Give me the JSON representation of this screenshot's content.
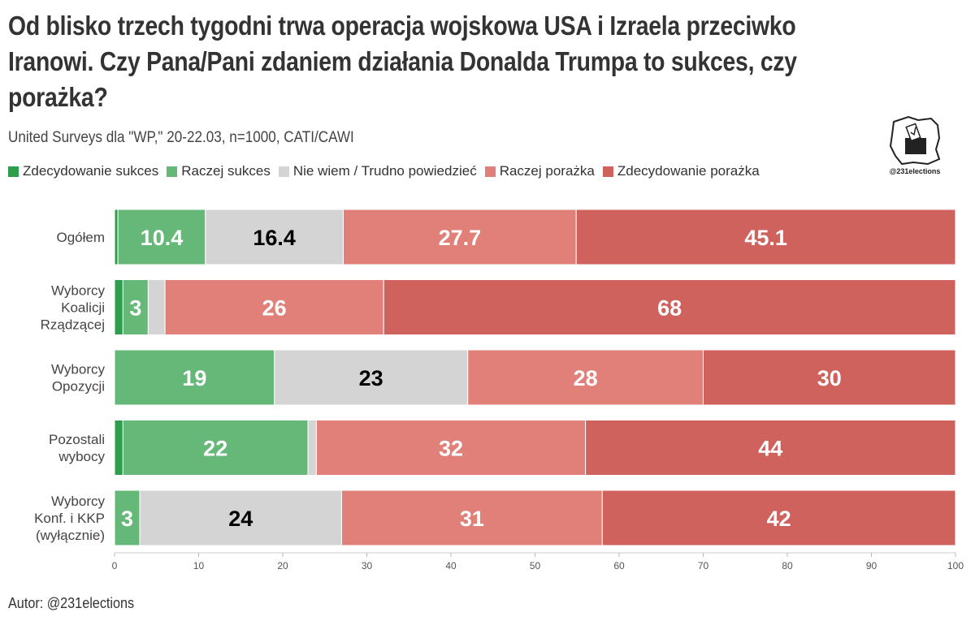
{
  "header": {
    "title": "Od blisko trzech tygodni trwa operacja wojskowa USA i Izraela przeciwko Iranowi. Czy Pana/Pani zdaniem działania Donalda Trumpa to sukces, czy porażka?",
    "subtitle": "United Surveys dla \"WP,\" 20-22.03, n=1000, CATI/CAWI"
  },
  "logo": {
    "handle": "@231elections"
  },
  "footer": {
    "author": "Autor: @231elections"
  },
  "chart_data": {
    "type": "bar",
    "orientation": "horizontal",
    "stacked": true,
    "title": "Od blisko trzech tygodni trwa operacja wojskowa USA i Izraela przeciwko Iranowi. Czy Pana/Pani zdaniem działania Donalda Trumpa to sukces, czy porażka?",
    "subtitle": "United Surveys dla \"WP,\" 20-22.03, n=1000, CATI/CAWI",
    "xlabel": "",
    "ylabel": "",
    "xlim": [
      0,
      100
    ],
    "xticks": [
      0,
      10,
      20,
      30,
      40,
      50,
      60,
      70,
      80,
      90,
      100
    ],
    "legend_position": "top-left",
    "categories": [
      [
        "Ogółem"
      ],
      [
        "Wyborcy",
        "Koalicji",
        "Rządzącej"
      ],
      [
        "Wyborcy",
        "Opozycji"
      ],
      [
        "Pozostali",
        "wybocy"
      ],
      [
        "Wyborcy",
        "Konf. i KKP",
        "(wyłącznie)"
      ]
    ],
    "series": [
      {
        "name": "Zdecydowanie sukces",
        "color": "#2e9e4e",
        "label_color": "#ffffff",
        "values": [
          0.4,
          1,
          0,
          1,
          0
        ],
        "labels": [
          "",
          "",
          "",
          "",
          ""
        ]
      },
      {
        "name": "Raczej sukces",
        "color": "#66b878",
        "label_color": "#ffffff",
        "values": [
          10.4,
          3,
          19,
          22,
          3
        ],
        "labels": [
          "10.4",
          "3",
          "19",
          "22",
          "3"
        ]
      },
      {
        "name": "Nie wiem / Trudno powiedzieć",
        "color": "#d4d4d4",
        "label_color": "#000000",
        "values": [
          16.4,
          2,
          23,
          1,
          24
        ],
        "labels": [
          "16.4",
          "",
          "23",
          "",
          "24"
        ]
      },
      {
        "name": "Raczej porażka",
        "color": "#e08078",
        "label_color": "#ffffff",
        "values": [
          27.7,
          26,
          28,
          32,
          31
        ],
        "labels": [
          "27.7",
          "26",
          "28",
          "32",
          "31"
        ]
      },
      {
        "name": "Zdecydowanie porażka",
        "color": "#d0625e",
        "label_color": "#ffffff",
        "values": [
          45.1,
          68,
          30,
          44,
          42
        ],
        "labels": [
          "45.1",
          "68",
          "30",
          "44",
          "42"
        ]
      }
    ]
  }
}
